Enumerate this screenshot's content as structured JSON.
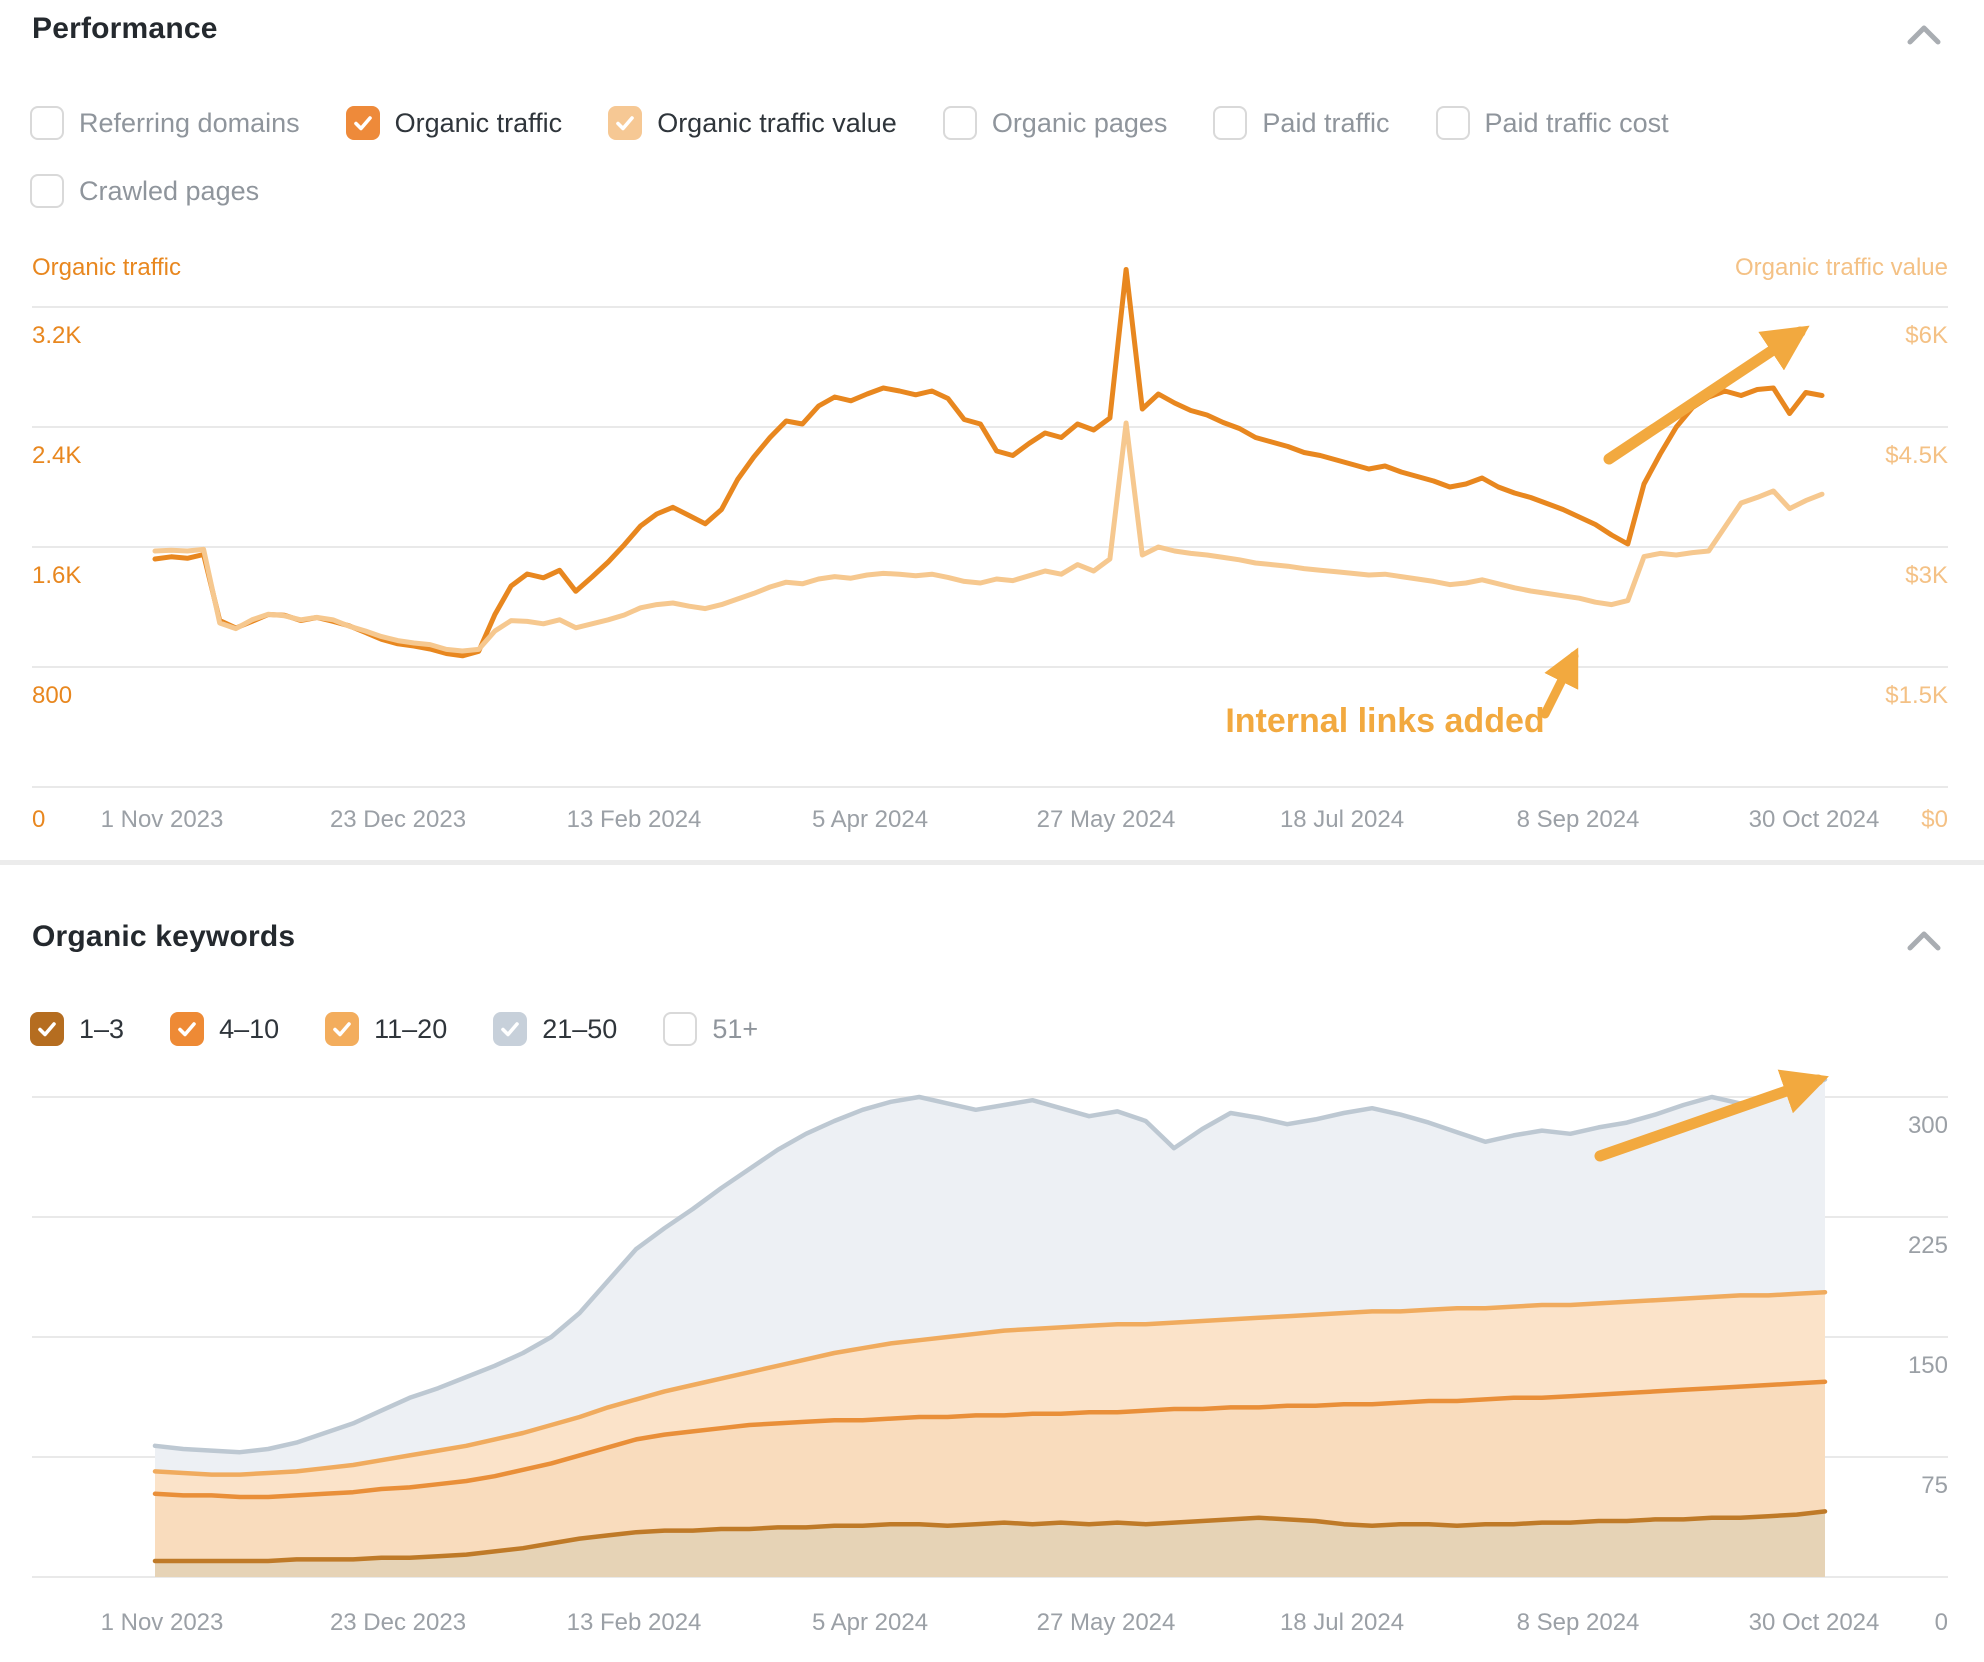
{
  "accent_colors": {
    "orange": "#e8871f",
    "light_orange": "#f6c88f",
    "annotation_orange": "#f2a93f",
    "gray_text": "#9ba0a6"
  },
  "performance": {
    "title": "Performance",
    "filter_rows": [
      [
        {
          "label": "Referring domains",
          "checked": false,
          "color": null
        },
        {
          "label": "Organic traffic",
          "checked": true,
          "color": "#ee8a3a"
        },
        {
          "label": "Organic traffic value",
          "checked": true,
          "color": "#f6c894"
        },
        {
          "label": "Organic pages",
          "checked": false,
          "color": null
        },
        {
          "label": "Paid traffic",
          "checked": false,
          "color": null
        },
        {
          "label": "Paid traffic cost",
          "checked": false,
          "color": null
        }
      ],
      [
        {
          "label": "Crawled pages",
          "checked": false,
          "color": null
        }
      ]
    ],
    "left_axis_title": "Organic traffic",
    "right_axis_title": "Organic traffic value",
    "annotation_text": "Internal links added"
  },
  "organic_keywords": {
    "title": "Organic keywords",
    "filter_rows": [
      [
        {
          "label": "1–3",
          "checked": true,
          "color": "#b56d20"
        },
        {
          "label": "4–10",
          "checked": true,
          "color": "#ee8a35"
        },
        {
          "label": "11–20",
          "checked": true,
          "color": "#f3ad5d"
        },
        {
          "label": "21–50",
          "checked": true,
          "color": "#c7d0da"
        },
        {
          "label": "51+",
          "checked": false,
          "color": null
        }
      ]
    ]
  },
  "chart_data": [
    {
      "type": "line",
      "title": "Performance — Organic traffic vs Organic traffic value",
      "x_tick_labels": [
        "1 Nov 2023",
        "23 Dec 2023",
        "13 Feb 2024",
        "5 Apr 2024",
        "27 May 2024",
        "18 Jul 2024",
        "8 Sep 2024",
        "30 Oct 2024"
      ],
      "grid": true,
      "legend_position": "axis-titles-top",
      "left_axis": {
        "title": "Organic traffic",
        "tick_labels": [
          "3.2K",
          "2.4K",
          "1.6K",
          "800",
          "0"
        ],
        "tick_values": [
          3200,
          2400,
          1600,
          800,
          0
        ],
        "color": "#e8871f",
        "ylim": [
          0,
          3650
        ]
      },
      "right_axis": {
        "title": "Organic traffic value",
        "tick_labels": [
          "$6K",
          "$4.5K",
          "$3K",
          "$1.5K",
          "$0"
        ],
        "tick_values": [
          6000,
          4500,
          3000,
          1500,
          0
        ],
        "color": "#f4c185",
        "ylim": [
          0,
          6850
        ]
      },
      "series": [
        {
          "name": "Organic traffic",
          "axis": "left",
          "color": "#e8871f",
          "values": [
            1520,
            1535,
            1525,
            1550,
            1110,
            1060,
            1105,
            1150,
            1145,
            1110,
            1130,
            1105,
            1075,
            1030,
            985,
            955,
            940,
            920,
            890,
            875,
            905,
            1150,
            1340,
            1420,
            1395,
            1445,
            1305,
            1400,
            1500,
            1615,
            1740,
            1820,
            1865,
            1810,
            1755,
            1850,
            2050,
            2200,
            2330,
            2440,
            2420,
            2540,
            2600,
            2575,
            2620,
            2660,
            2640,
            2615,
            2640,
            2590,
            2450,
            2420,
            2240,
            2210,
            2290,
            2360,
            2330,
            2420,
            2380,
            2460,
            3450,
            2520,
            2620,
            2560,
            2510,
            2480,
            2430,
            2390,
            2330,
            2300,
            2270,
            2230,
            2210,
            2180,
            2150,
            2120,
            2140,
            2100,
            2070,
            2040,
            2000,
            2020,
            2060,
            2000,
            1960,
            1930,
            1890,
            1850,
            1800,
            1750,
            1680,
            1620,
            2020,
            2220,
            2400,
            2530,
            2600,
            2640,
            2610,
            2650,
            2660,
            2490,
            2630,
            2610
          ]
        },
        {
          "name": "Organic traffic value",
          "axis": "right",
          "color": "#f6c88f",
          "values": [
            2950,
            2960,
            2950,
            2970,
            2050,
            1980,
            2090,
            2160,
            2140,
            2090,
            2120,
            2090,
            2010,
            1950,
            1880,
            1830,
            1800,
            1780,
            1720,
            1700,
            1720,
            1950,
            2080,
            2070,
            2040,
            2090,
            1990,
            2040,
            2090,
            2150,
            2240,
            2280,
            2300,
            2260,
            2230,
            2280,
            2350,
            2420,
            2500,
            2560,
            2540,
            2600,
            2630,
            2610,
            2650,
            2670,
            2660,
            2640,
            2660,
            2620,
            2570,
            2550,
            2600,
            2580,
            2640,
            2700,
            2660,
            2780,
            2700,
            2850,
            4550,
            2900,
            3000,
            2950,
            2920,
            2900,
            2870,
            2840,
            2800,
            2780,
            2760,
            2730,
            2710,
            2690,
            2670,
            2650,
            2660,
            2630,
            2600,
            2570,
            2530,
            2550,
            2590,
            2540,
            2490,
            2450,
            2420,
            2390,
            2360,
            2310,
            2280,
            2330,
            2880,
            2920,
            2900,
            2930,
            2950,
            3250,
            3550,
            3620,
            3700,
            3480,
            3580,
            3660
          ]
        }
      ],
      "annotations": [
        {
          "text": "Internal links added",
          "color": "#f2a93f",
          "target": "dip of Organic traffic value after 8 Sep 2024"
        },
        {
          "type": "arrow",
          "meaning": "upward trend after internal links added"
        }
      ]
    },
    {
      "type": "area",
      "stacked": true,
      "title": "Organic keywords by ranking position",
      "x_tick_labels": [
        "1 Nov 2023",
        "23 Dec 2023",
        "13 Feb 2024",
        "5 Apr 2024",
        "27 May 2024",
        "18 Jul 2024",
        "8 Sep 2024",
        "30 Oct 2024"
      ],
      "grid": true,
      "right_axis": {
        "tick_labels": [
          "300",
          "225",
          "150",
          "75",
          "0"
        ],
        "tick_values": [
          300,
          225,
          150,
          75,
          0
        ],
        "color": "#9ba0a6",
        "ylim": [
          0,
          325
        ]
      },
      "values_are": "cumulative stack tops (keywords count)",
      "series": [
        {
          "name": "1–3",
          "line_color": "#bf7a28",
          "fill_color": "#e6d3b6",
          "values": [
            10,
            10,
            10,
            10,
            10,
            11,
            11,
            11,
            12,
            12,
            13,
            14,
            16,
            18,
            21,
            24,
            26,
            28,
            29,
            29,
            30,
            30,
            31,
            31,
            32,
            32,
            33,
            33,
            32,
            33,
            34,
            33,
            34,
            33,
            34,
            33,
            34,
            35,
            36,
            37,
            36,
            35,
            33,
            32,
            33,
            33,
            32,
            33,
            33,
            34,
            34,
            35,
            35,
            36,
            36,
            37,
            37,
            38,
            39,
            41
          ]
        },
        {
          "name": "4–10",
          "line_color": "#e98f39",
          "fill_color": "#f9dcbd",
          "values": [
            52,
            51,
            51,
            50,
            50,
            51,
            52,
            53,
            55,
            56,
            58,
            60,
            63,
            67,
            71,
            76,
            81,
            86,
            89,
            91,
            93,
            95,
            96,
            97,
            98,
            98,
            99,
            100,
            100,
            101,
            101,
            102,
            102,
            103,
            103,
            104,
            105,
            105,
            106,
            106,
            107,
            107,
            108,
            108,
            109,
            110,
            110,
            111,
            112,
            112,
            113,
            114,
            115,
            116,
            117,
            118,
            119,
            120,
            121,
            122
          ]
        },
        {
          "name": "11–20",
          "line_color": "#f0ab5e",
          "fill_color": "#fbe3c9",
          "values": [
            66,
            65,
            64,
            64,
            65,
            66,
            68,
            70,
            73,
            76,
            79,
            82,
            86,
            90,
            95,
            100,
            106,
            111,
            116,
            120,
            124,
            128,
            132,
            136,
            140,
            143,
            146,
            148,
            150,
            152,
            154,
            155,
            156,
            157,
            158,
            158,
            159,
            160,
            161,
            162,
            163,
            164,
            165,
            166,
            166,
            167,
            168,
            168,
            169,
            170,
            170,
            171,
            172,
            173,
            174,
            175,
            176,
            176,
            177,
            178
          ]
        },
        {
          "name": "21–50",
          "line_color": "#bdc8d2",
          "fill_color": "#edf0f4",
          "values": [
            82,
            80,
            79,
            78,
            80,
            84,
            90,
            96,
            104,
            112,
            118,
            125,
            132,
            140,
            150,
            165,
            185,
            205,
            218,
            230,
            243,
            255,
            267,
            277,
            285,
            292,
            297,
            300,
            296,
            292,
            295,
            298,
            293,
            288,
            291,
            285,
            268,
            280,
            290,
            287,
            283,
            286,
            290,
            293,
            289,
            284,
            278,
            272,
            276,
            279,
            277,
            281,
            284,
            289,
            295,
            300,
            296,
            299,
            304,
            311
          ]
        }
      ],
      "annotations": [
        {
          "type": "arrow",
          "meaning": "upward trend of total ranking keywords"
        }
      ]
    }
  ]
}
